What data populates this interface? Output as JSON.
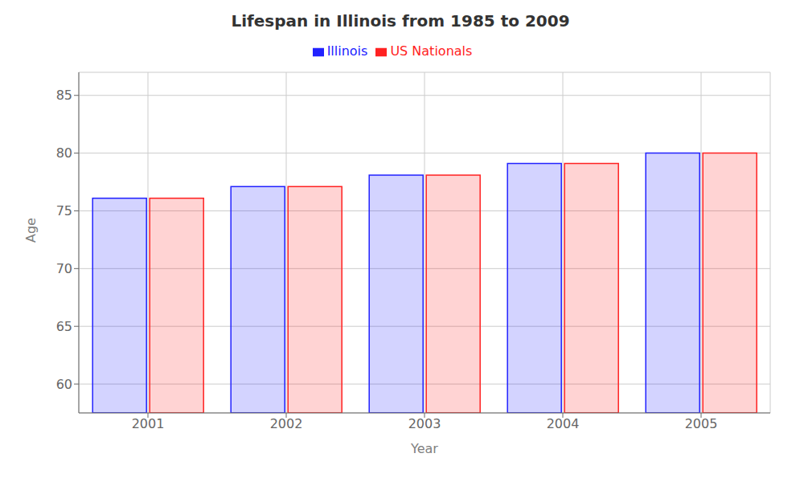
{
  "chart_data": {
    "type": "bar",
    "title": "Lifespan in Illinois from 1985 to 2009",
    "x_label": "Year",
    "y_label": "Age",
    "categories": [
      "2001",
      "2002",
      "2003",
      "2004",
      "2005"
    ],
    "series": [
      {
        "name": "Illinois",
        "color": "#2222ff",
        "values": [
          76.1,
          77.1,
          78.1,
          79.1,
          80.0
        ]
      },
      {
        "name": "US Nationals",
        "color": "#ff2222",
        "values": [
          76.1,
          77.1,
          78.1,
          79.1,
          80.0
        ]
      }
    ],
    "ylim": [
      57.5,
      87
    ],
    "yticks": [
      60,
      65,
      70,
      75,
      80,
      85
    ],
    "grid": true,
    "legend": "top"
  }
}
